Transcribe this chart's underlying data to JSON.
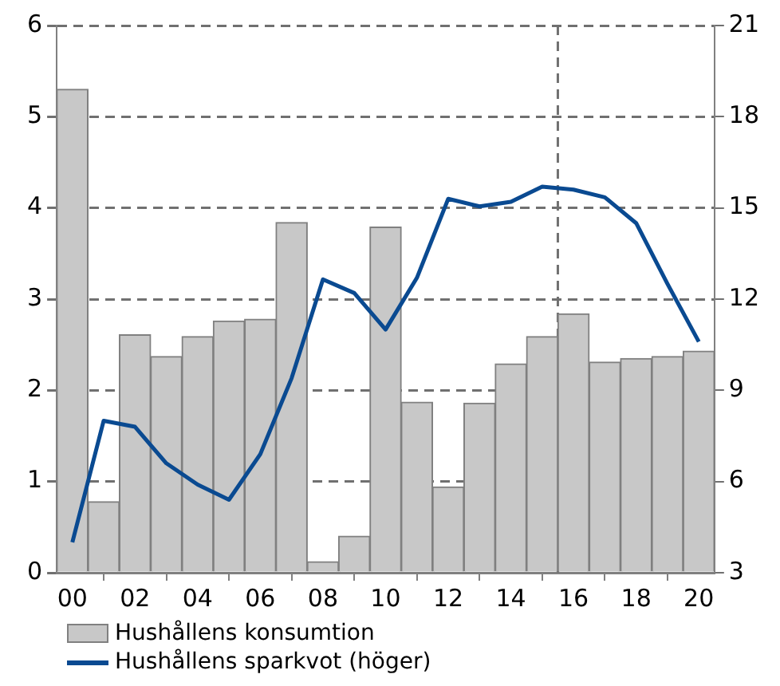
{
  "chart_data": {
    "type": "bar",
    "x": [
      2000,
      2001,
      2002,
      2003,
      2004,
      2005,
      2006,
      2007,
      2008,
      2009,
      2010,
      2011,
      2012,
      2013,
      2014,
      2015,
      2016,
      2017,
      2018,
      2019,
      2020
    ],
    "xlim": [
      1999.5,
      2020.5
    ],
    "xticks": [
      {
        "value": 2000,
        "label": "00"
      },
      {
        "value": 2002,
        "label": "02"
      },
      {
        "value": 2004,
        "label": "04"
      },
      {
        "value": 2006,
        "label": "06"
      },
      {
        "value": 2008,
        "label": "08"
      },
      {
        "value": 2010,
        "label": "10"
      },
      {
        "value": 2012,
        "label": "12"
      },
      {
        "value": 2014,
        "label": "14"
      },
      {
        "value": 2016,
        "label": "16"
      },
      {
        "value": 2018,
        "label": "18"
      },
      {
        "value": 2020,
        "label": "20"
      }
    ],
    "ylim": [
      0,
      6
    ],
    "yticks": [
      0,
      1,
      2,
      3,
      4,
      5,
      6
    ],
    "y2lim": [
      3,
      21
    ],
    "y2ticks": [
      3,
      6,
      9,
      12,
      15,
      18,
      21
    ],
    "series": [
      {
        "name": "Hushållens konsumtion",
        "color": "#c8c8c8",
        "values": [
          5.3,
          0.78,
          2.61,
          2.37,
          2.59,
          2.76,
          2.78,
          3.84,
          0.12,
          0.4,
          3.79,
          1.87,
          0.94,
          1.86,
          2.29,
          2.59,
          2.84,
          2.31,
          2.35,
          2.37,
          2.43
        ]
      },
      {
        "name": "Hushållens sparkvot (höger)",
        "type": "line",
        "axis": "y2",
        "color": "#0a4a91",
        "values": [
          4.0,
          8.0,
          7.8,
          6.6,
          5.9,
          5.4,
          6.9,
          9.4,
          12.65,
          12.2,
          11.0,
          12.7,
          15.3,
          15.05,
          15.2,
          15.7,
          15.6,
          15.35,
          14.5,
          12.5,
          10.6
        ]
      }
    ],
    "ref_lines": [
      {
        "axis": "x",
        "value": 2015.5,
        "color": "#707070",
        "line_style": "dashed"
      }
    ],
    "grid": "y",
    "legend": "bottom",
    "marker": "none",
    "line_style": "solid"
  }
}
